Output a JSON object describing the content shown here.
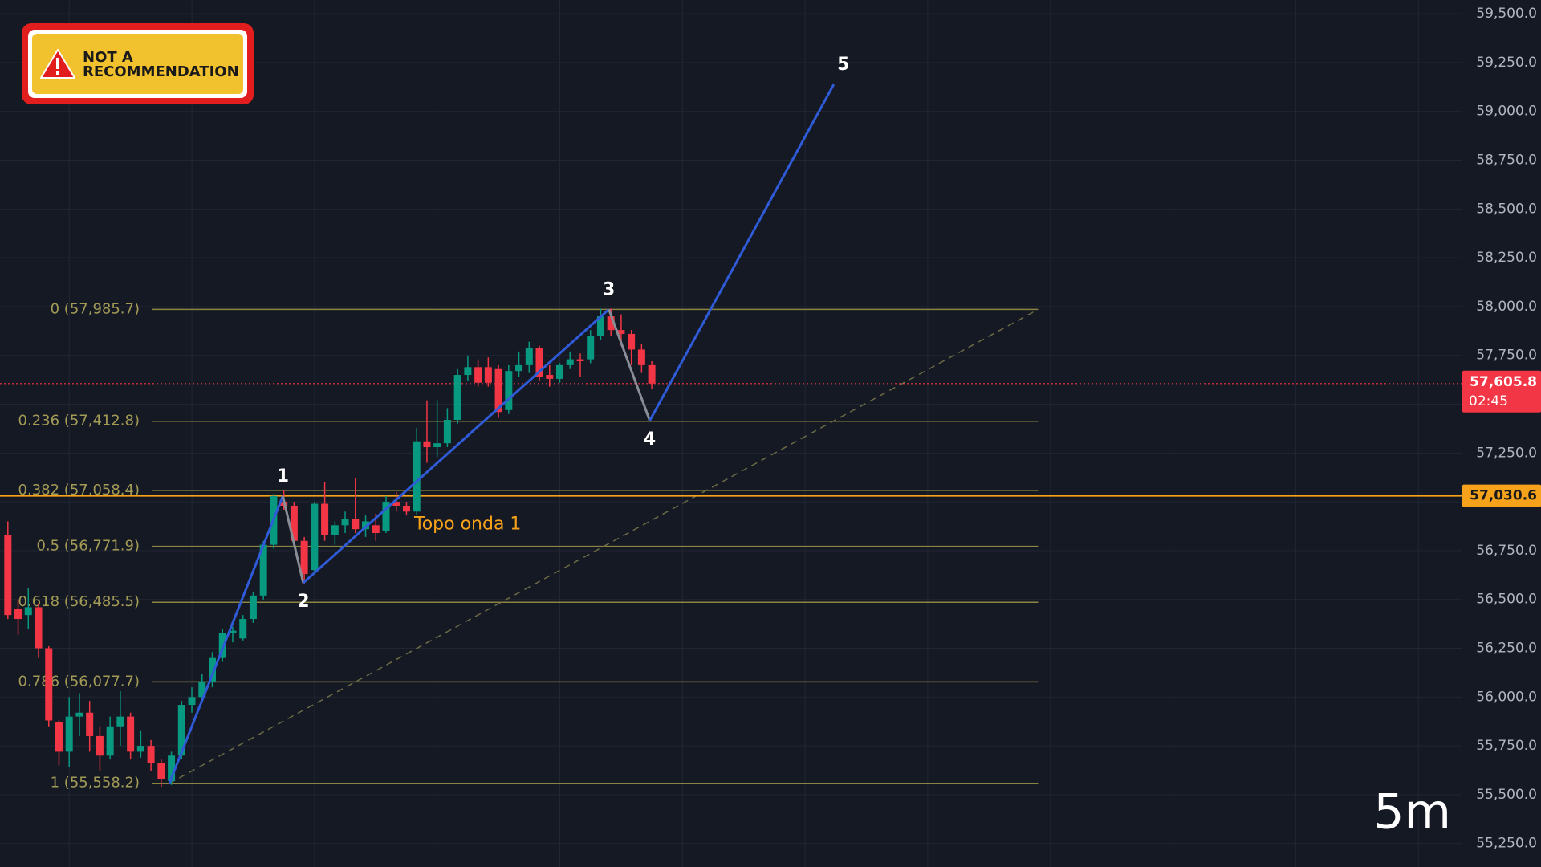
{
  "chart_data": {
    "type": "candlestick",
    "x": [
      0,
      1,
      2,
      3,
      4,
      5,
      6,
      7,
      8,
      9,
      10,
      11,
      12,
      13,
      14,
      15,
      16,
      17,
      18,
      19,
      20,
      21,
      22,
      23,
      24,
      25,
      26,
      27,
      28,
      29,
      30,
      31,
      32,
      33,
      34,
      35,
      36,
      37,
      38,
      39,
      40,
      41,
      42,
      43,
      44,
      45,
      46,
      47,
      48,
      49,
      50,
      51,
      52,
      53,
      54,
      55,
      56,
      57,
      58,
      59,
      60,
      61,
      62,
      63
    ],
    "open": [
      56830,
      56450,
      56420,
      56460,
      56250,
      55870,
      55720,
      55900,
      55920,
      55800,
      55700,
      55850,
      55900,
      55720,
      55750,
      55660,
      55570,
      55700,
      55960,
      56000,
      56080,
      56200,
      56330,
      56300,
      56400,
      56520,
      56780,
      57000,
      56980,
      56800,
      56650,
      56990,
      56830,
      56880,
      56910,
      56860,
      56880,
      56850,
      57000,
      56980,
      56950,
      57310,
      57280,
      57300,
      57420,
      57650,
      57690,
      57690,
      57680,
      57470,
      57670,
      57700,
      57790,
      57650,
      57630,
      57700,
      57730,
      57730,
      57850,
      57950,
      57880,
      57860,
      57780,
      57700
    ],
    "high": [
      56900,
      56500,
      56560,
      56480,
      56260,
      55880,
      56000,
      56020,
      55980,
      55850,
      55900,
      56030,
      55920,
      55830,
      55780,
      55680,
      55720,
      55980,
      56050,
      56120,
      56230,
      56350,
      56360,
      56420,
      56540,
      56800,
      57040,
      57060,
      57000,
      56820,
      57000,
      57100,
      56900,
      56950,
      57120,
      56930,
      56940,
      57030,
      57050,
      57000,
      57380,
      57520,
      57520,
      57480,
      57680,
      57750,
      57730,
      57740,
      57700,
      57700,
      57770,
      57820,
      57800,
      57700,
      57710,
      57770,
      57760,
      57880,
      57990,
      57990,
      57960,
      57880,
      57810,
      57720
    ],
    "low": [
      56400,
      56320,
      56350,
      56200,
      55850,
      55650,
      55640,
      55800,
      55720,
      55620,
      55680,
      55750,
      55680,
      55690,
      55620,
      55540,
      55550,
      55680,
      55920,
      55980,
      56050,
      56180,
      56280,
      56290,
      56380,
      56500,
      56760,
      56960,
      56780,
      56580,
      56630,
      56800,
      56780,
      56840,
      56840,
      56820,
      56800,
      56840,
      56950,
      56930,
      56930,
      57200,
      57230,
      57280,
      57400,
      57620,
      57590,
      57590,
      57430,
      57450,
      57640,
      57660,
      57620,
      57590,
      57610,
      57680,
      57640,
      57710,
      57830,
      57850,
      57800,
      57700,
      57660,
      57580
    ],
    "close": [
      56420,
      56400,
      56460,
      56250,
      55880,
      55720,
      55900,
      55920,
      55800,
      55700,
      55850,
      55900,
      55720,
      55750,
      55660,
      55580,
      55700,
      55960,
      56000,
      56080,
      56200,
      56330,
      56340,
      56400,
      56520,
      56780,
      57030,
      56980,
      56800,
      56630,
      56990,
      56830,
      56880,
      56910,
      56860,
      56900,
      56840,
      57000,
      56980,
      56950,
      57310,
      57280,
      57300,
      57420,
      57650,
      57690,
      57610,
      57610,
      57460,
      57670,
      57700,
      57790,
      57640,
      57630,
      57700,
      57730,
      57720,
      57850,
      57950,
      57880,
      57860,
      57780,
      57700,
      57606
    ],
    "up_color": "#089981",
    "down_color": "#f23645",
    "xlim": [
      -0.77,
      142.3
    ],
    "xticks": [
      6,
      18,
      30,
      42,
      54,
      66,
      78,
      90,
      102,
      114,
      126,
      138
    ],
    "ylim": [
      55129.5,
      59570.5
    ],
    "yticks": [
      {
        "value": 55250,
        "label": "55,250.0"
      },
      {
        "value": 55500,
        "label": "55,500.0"
      },
      {
        "value": 55750,
        "label": "55,750.0"
      },
      {
        "value": 56000,
        "label": "56,000.0"
      },
      {
        "value": 56250,
        "label": "56,250.0"
      },
      {
        "value": 56500,
        "label": "56,500.0"
      },
      {
        "value": 56750,
        "label": "56,750.0"
      },
      {
        "value": 57000,
        "label": "57,000.0"
      },
      {
        "value": 57250,
        "label": "57,250.0"
      },
      {
        "value": 57500,
        "label": "57,500.0"
      },
      {
        "value": 57750,
        "label": "57,750.0"
      },
      {
        "value": 58000,
        "label": "58,000.0"
      },
      {
        "value": 58250,
        "label": "58,250.0"
      },
      {
        "value": 58500,
        "label": "58,500.0"
      },
      {
        "value": 58750,
        "label": "58,750.0"
      },
      {
        "value": 59000,
        "label": "59,000.0"
      },
      {
        "value": 59250,
        "label": "59,250.0"
      },
      {
        "value": 59500,
        "label": "59,500.0"
      }
    ],
    "grid": true,
    "fib_levels": [
      {
        "value": 57985.7,
        "label": "0 (57,985.7)"
      },
      {
        "value": 57412.8,
        "label": "0.236 (57,412.8)"
      },
      {
        "value": 57058.4,
        "label": "0.382 (57,058.4)"
      },
      {
        "value": 56771.9,
        "label": "0.5 (56,771.9)"
      },
      {
        "value": 56485.5,
        "label": "0.618 (56,485.5)"
      },
      {
        "value": 56077.7,
        "label": "0.786 (56,077.7)"
      },
      {
        "value": 55558.2,
        "label": "1 (55,558.2)"
      }
    ],
    "fib_range": [
      14.1,
      100.8
    ],
    "fib_color": "#8a8540",
    "waves": {
      "x": [
        15.8,
        26.9,
        28.9,
        58.8,
        62.8,
        80.8
      ],
      "y": [
        55558.2,
        57030,
        56585,
        57985.7,
        57416,
        59138
      ],
      "labels": [
        null,
        "1",
        "2",
        "3",
        "4",
        "5"
      ],
      "segment_colors": [
        "#2f5bd8",
        "#8a8d96",
        "#2f5bd8",
        "#8a8d96",
        "#2f5bd8"
      ]
    },
    "trendline": {
      "x": [
        15.8,
        100.8
      ],
      "y": [
        55558.2,
        57985.7
      ],
      "color": "#6b6a45"
    },
    "price_markers": [
      {
        "value": 57605.8,
        "label": "57,605.8",
        "sublabel": "02:45",
        "color": "#f23645",
        "style": "dotted"
      },
      {
        "value": 57030.6,
        "label": "57,030.6",
        "color": "#f7a21b",
        "style": "solid"
      }
    ],
    "annotation": "Topo onda 1",
    "timeframe": "5m",
    "badge": [
      "NOT A",
      "RECOMMENDATION"
    ]
  }
}
